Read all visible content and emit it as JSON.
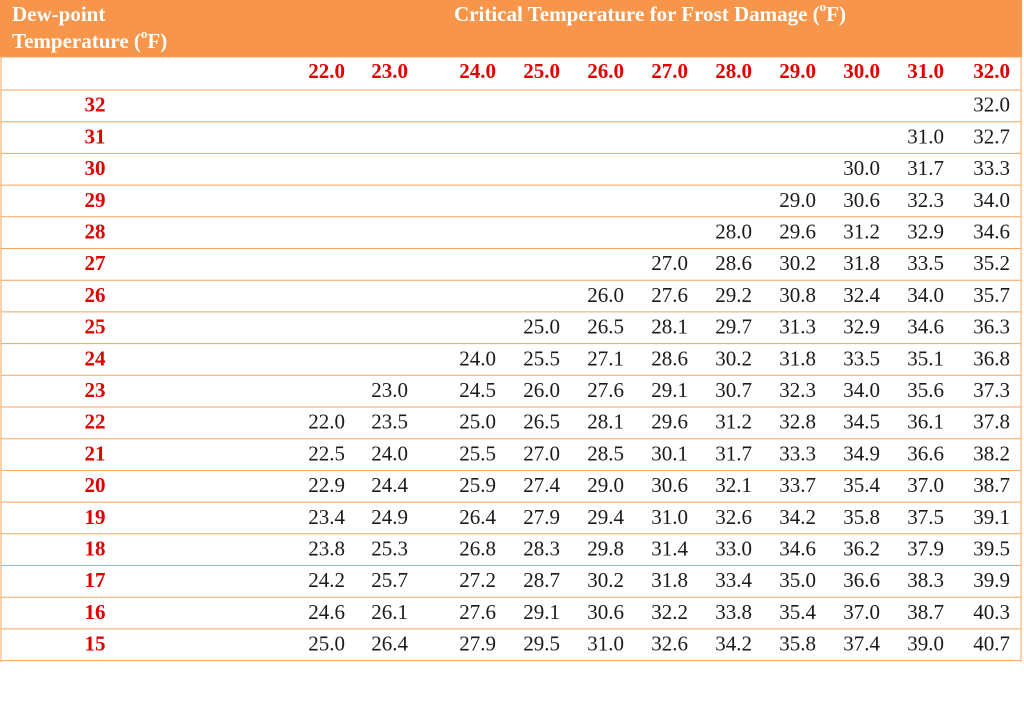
{
  "table": {
    "corner": {
      "line1": "Dew-point",
      "line2": "Temperature (",
      "sup": "o",
      "after": "F)"
    },
    "title": {
      "text": "Critical Temperature for Frost Damage (",
      "sup": "o",
      "after": "F)"
    },
    "columns": [
      "22.0",
      "23.0",
      "24.0",
      "25.0",
      "26.0",
      "27.0",
      "28.0",
      "29.0",
      "30.0",
      "31.0",
      "32.0"
    ],
    "rows": [
      {
        "dew_point": "32",
        "cells": [
          null,
          null,
          null,
          null,
          null,
          null,
          null,
          null,
          null,
          null,
          "32.0"
        ]
      },
      {
        "dew_point": "31",
        "cells": [
          null,
          null,
          null,
          null,
          null,
          null,
          null,
          null,
          null,
          "31.0",
          "32.7"
        ]
      },
      {
        "dew_point": "30",
        "cells": [
          null,
          null,
          null,
          null,
          null,
          null,
          null,
          null,
          "30.0",
          "31.7",
          "33.3"
        ]
      },
      {
        "dew_point": "29",
        "cells": [
          null,
          null,
          null,
          null,
          null,
          null,
          null,
          "29.0",
          "30.6",
          "32.3",
          "34.0"
        ]
      },
      {
        "dew_point": "28",
        "cells": [
          null,
          null,
          null,
          null,
          null,
          null,
          "28.0",
          "29.6",
          "31.2",
          "32.9",
          "34.6"
        ]
      },
      {
        "dew_point": "27",
        "cells": [
          null,
          null,
          null,
          null,
          null,
          "27.0",
          "28.6",
          "30.2",
          "31.8",
          "33.5",
          "35.2"
        ]
      },
      {
        "dew_point": "26",
        "cells": [
          null,
          null,
          null,
          null,
          "26.0",
          "27.6",
          "29.2",
          "30.8",
          "32.4",
          "34.0",
          "35.7"
        ]
      },
      {
        "dew_point": "25",
        "cells": [
          null,
          null,
          null,
          "25.0",
          "26.5",
          "28.1",
          "29.7",
          "31.3",
          "32.9",
          "34.6",
          "36.3"
        ]
      },
      {
        "dew_point": "24",
        "cells": [
          null,
          null,
          "24.0",
          "25.5",
          "27.1",
          "28.6",
          "30.2",
          "31.8",
          "33.5",
          "35.1",
          "36.8"
        ]
      },
      {
        "dew_point": "23",
        "cells": [
          null,
          "23.0",
          "24.5",
          "26.0",
          "27.6",
          "29.1",
          "30.7",
          "32.3",
          "34.0",
          "35.6",
          "37.3"
        ]
      },
      {
        "dew_point": "22",
        "cells": [
          "22.0",
          "23.5",
          "25.0",
          "26.5",
          "28.1",
          "29.6",
          "31.2",
          "32.8",
          "34.5",
          "36.1",
          "37.8"
        ]
      },
      {
        "dew_point": "21",
        "cells": [
          "22.5",
          "24.0",
          "25.5",
          "27.0",
          "28.5",
          "30.1",
          "31.7",
          "33.3",
          "34.9",
          "36.6",
          "38.2"
        ]
      },
      {
        "dew_point": "20",
        "cells": [
          "22.9",
          "24.4",
          "25.9",
          "27.4",
          "29.0",
          "30.6",
          "32.1",
          "33.7",
          "35.4",
          "37.0",
          "38.7"
        ]
      },
      {
        "dew_point": "19",
        "cells": [
          "23.4",
          "24.9",
          "26.4",
          "27.9",
          "29.4",
          "31.0",
          "32.6",
          "34.2",
          "35.8",
          "37.5",
          "39.1"
        ]
      },
      {
        "dew_point": "18",
        "cells": [
          "23.8",
          "25.3",
          "26.8",
          "28.3",
          "29.8",
          "31.4",
          "33.0",
          "34.6",
          "36.2",
          "37.9",
          "39.5"
        ]
      },
      {
        "dew_point": "17",
        "cells": [
          "24.2",
          "25.7",
          "27.2",
          "28.7",
          "30.2",
          "31.8",
          "33.4",
          "35.0",
          "36.6",
          "38.3",
          "39.9"
        ]
      },
      {
        "dew_point": "16",
        "cells": [
          "24.6",
          "26.1",
          "27.6",
          "29.1",
          "30.6",
          "32.2",
          "33.8",
          "35.4",
          "37.0",
          "38.7",
          "40.3"
        ]
      },
      {
        "dew_point": "15",
        "cells": [
          "25.0",
          "26.4",
          "27.9",
          "29.5",
          "31.0",
          "32.6",
          "34.2",
          "35.8",
          "37.4",
          "39.0",
          "40.7"
        ]
      }
    ]
  }
}
